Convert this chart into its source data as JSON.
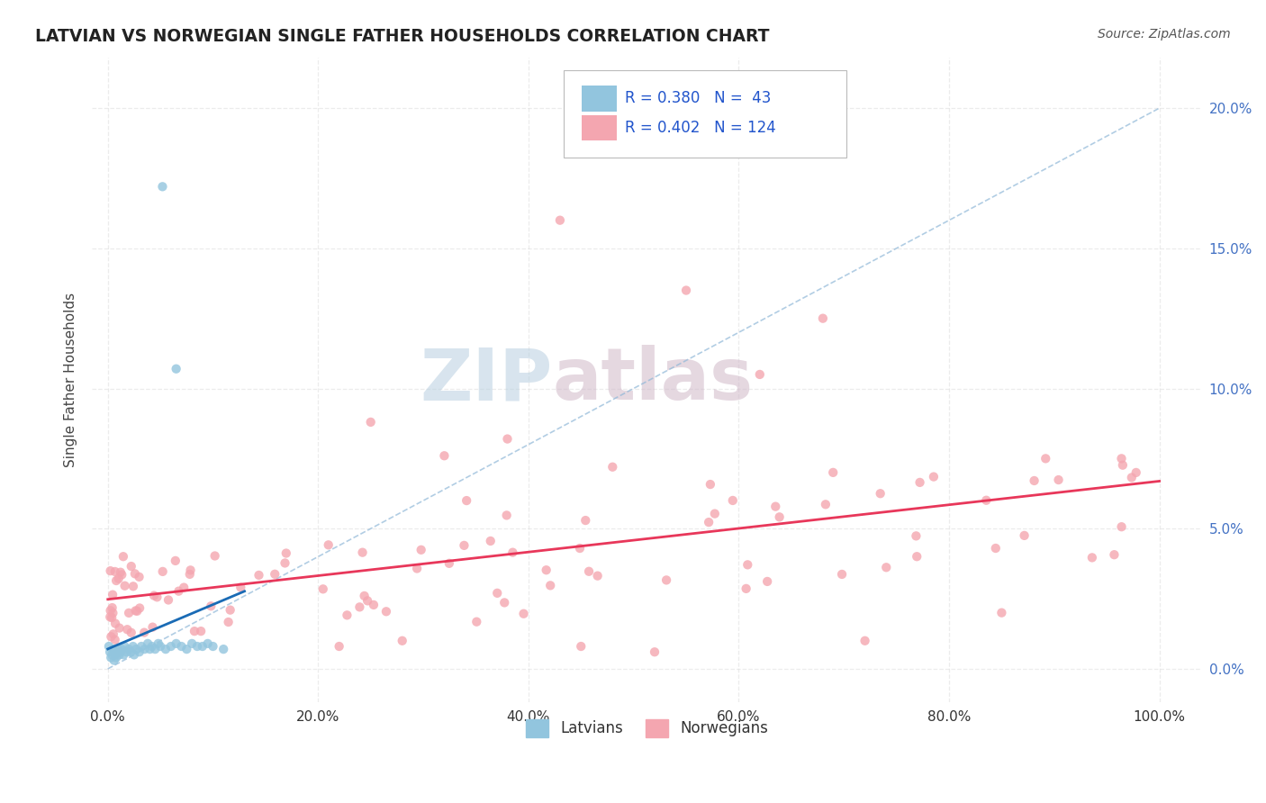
{
  "title": "LATVIAN VS NORWEGIAN SINGLE FATHER HOUSEHOLDS CORRELATION CHART",
  "source_text": "Source: ZipAtlas.com",
  "ylabel": "Single Father Households",
  "x_ticks": [
    0.0,
    0.2,
    0.4,
    0.6,
    0.8,
    1.0
  ],
  "x_tick_labels": [
    "0.0%",
    "20.0%",
    "40.0%",
    "60.0%",
    "80.0%",
    "100.0%"
  ],
  "y_ticks": [
    0.0,
    0.05,
    0.1,
    0.15,
    0.2
  ],
  "y_tick_labels": [
    "0.0%",
    "5.0%",
    "10.0%",
    "15.0%",
    "20.0%"
  ],
  "xlim": [
    -0.015,
    1.04
  ],
  "ylim": [
    -0.012,
    0.218
  ],
  "latvian_color": "#92c5de",
  "norwegian_color": "#f4a6b0",
  "latvian_line_color": "#1a6bb5",
  "norwegian_line_color": "#e8375a",
  "latvian_R": 0.38,
  "latvian_N": 43,
  "norwegian_R": 0.402,
  "norwegian_N": 124,
  "watermark_zip": "ZIP",
  "watermark_atlas": "atlas",
  "legend_text_color": "#2255cc",
  "tick_color": "#4472c4",
  "grid_color": "#dddddd",
  "title_color": "#222222",
  "source_color": "#555555",
  "ylabel_color": "#444444"
}
